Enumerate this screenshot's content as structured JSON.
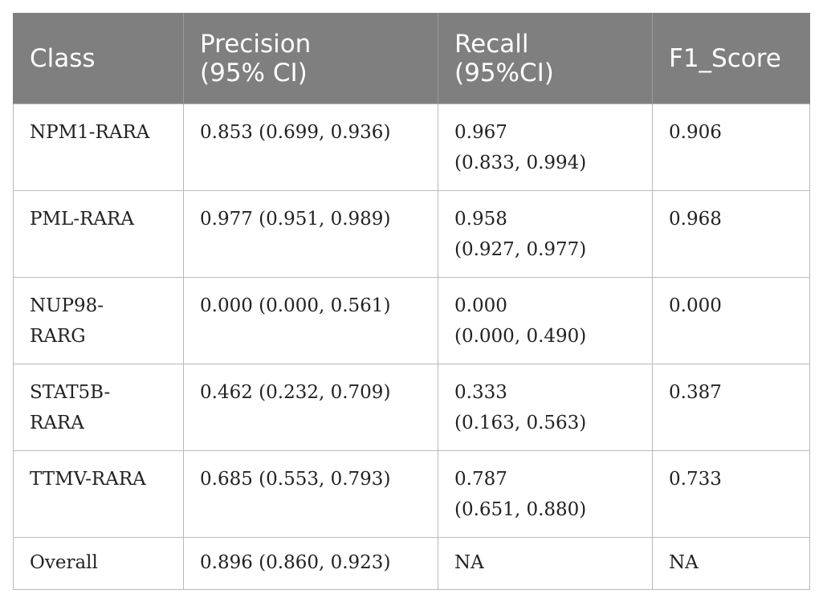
{
  "table": {
    "headers": [
      "Class",
      "Precision\n(95% CI)",
      "Recall\n(95%CI)",
      "F1_Score"
    ],
    "rows": [
      [
        "NPM1-RARA",
        "0.853 (0.699, 0.936)",
        "0.967\n(0.833, 0.994)",
        "0.906"
      ],
      [
        "PML-RARA",
        "0.977 (0.951, 0.989)",
        "0.958\n(0.927, 0.977)",
        "0.968"
      ],
      [
        "NUP98-\nRARG",
        "0.000 (0.000, 0.561)",
        "0.000\n(0.000, 0.490)",
        "0.000"
      ],
      [
        "STAT5B-\nRARA",
        "0.462 (0.232, 0.709)",
        "0.333\n(0.163, 0.563)",
        "0.387"
      ],
      [
        "TTMV-RARA",
        "0.685 (0.553, 0.793)",
        "0.787\n(0.651, 0.880)",
        "0.733"
      ],
      [
        "Overall",
        "0.896 (0.860, 0.923)",
        "NA",
        "NA"
      ]
    ]
  },
  "colors": {
    "header_bg": "#7f7f7f",
    "header_text": "#ffffff",
    "border": "#b9b9b9",
    "body_text": "#222222"
  }
}
